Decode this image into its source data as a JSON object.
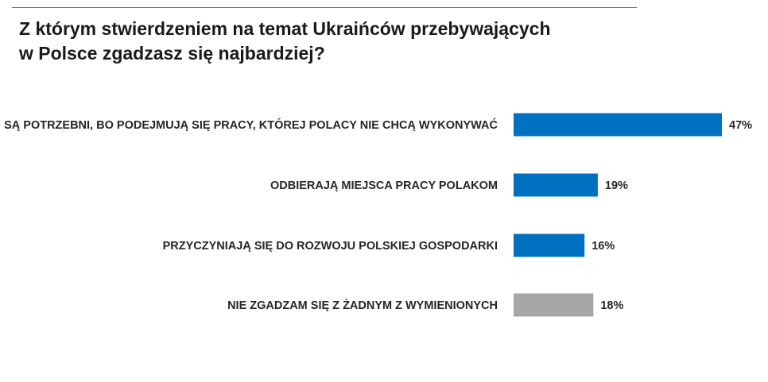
{
  "chart_data": {
    "type": "bar",
    "orientation": "horizontal",
    "title": "Z którym stwierdzeniem na temat Ukraińców przebywających w Polsce zgadzasz się najbardziej?",
    "title_lines": [
      "Z którym stwierdzeniem na temat Ukraińców przebywających",
      "w Polsce zgadzasz się najbardziej?"
    ],
    "categories": [
      "SĄ POTRZEBNI, BO PODEJMUJĄ SIĘ PRACY, KTÓREJ POLACY NIE CHCĄ WYKONYWAĆ",
      "ODBIERAJĄ MIEJSCA PRACY POLAKOM",
      "PRZYCZYNIAJĄ SIĘ DO ROZWOJU POLSKIEJ GOSPODARKI",
      "NIE ZGADZAM SIĘ Z ŻADNYM Z WYMIENIONYCH"
    ],
    "values": [
      47,
      19,
      16,
      18
    ],
    "value_labels": [
      "47%",
      "19%",
      "16%",
      "18%"
    ],
    "bar_colors": [
      "#0070c0",
      "#0070c0",
      "#0070c0",
      "#a6a6a6"
    ],
    "unit": "%",
    "grid": false,
    "legend": false
  }
}
